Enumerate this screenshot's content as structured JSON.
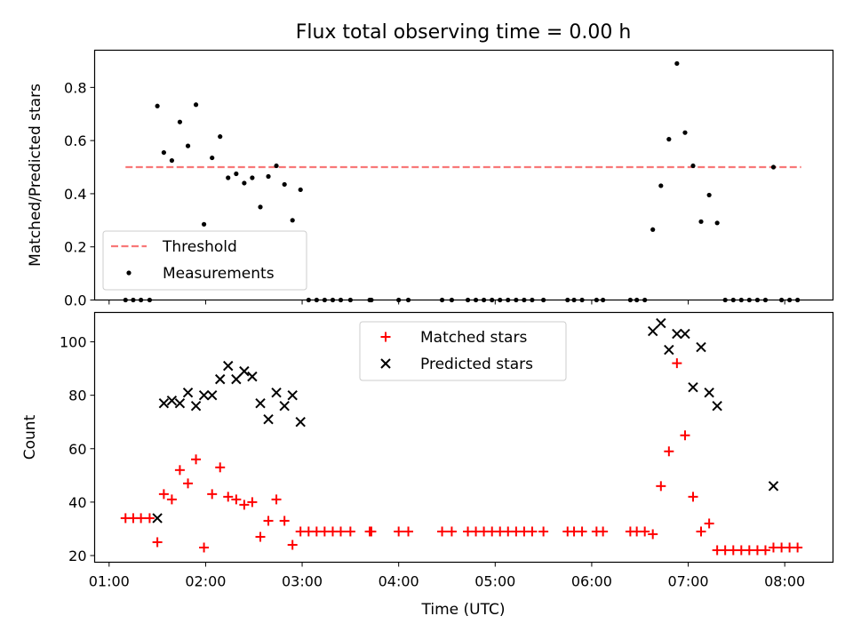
{
  "figure": {
    "title": "Flux total observing time = 0.00 h"
  },
  "chart_data": [
    {
      "type": "scatter",
      "panel": "top",
      "title": "Flux total observing time = 0.00 h",
      "xlabel": "",
      "ylabel": "Matched/Predicted stars",
      "xlim": [
        0.85,
        8.5
      ],
      "ylim": [
        0,
        0.94
      ],
      "yticks": [
        0.0,
        0.2,
        0.4,
        0.6,
        0.8
      ],
      "ytick_labels": [
        "0.0",
        "0.2",
        "0.4",
        "0.6",
        "0.8"
      ],
      "legend": {
        "position": "lower-left",
        "entries": [
          "Threshold",
          "Measurements"
        ]
      },
      "threshold": {
        "name": "Threshold",
        "y": 0.5,
        "x": [
          1.17,
          8.17
        ],
        "color": "#f87878",
        "style": "dashed"
      },
      "series": [
        {
          "name": "Measurements",
          "color": "#000000",
          "marker": "dot",
          "x": [
            1.17,
            1.25,
            1.33,
            1.42,
            1.5,
            1.567,
            1.65,
            1.733,
            1.817,
            1.9,
            1.983,
            2.067,
            2.15,
            2.233,
            2.317,
            2.4,
            2.483,
            2.567,
            2.65,
            2.733,
            2.817,
            2.9,
            2.983,
            3.067,
            3.15,
            3.233,
            3.317,
            3.4,
            3.5,
            3.7,
            3.717,
            4.0,
            4.1,
            4.45,
            4.55,
            4.717,
            4.8,
            4.883,
            4.967,
            5.05,
            5.133,
            5.217,
            5.3,
            5.383,
            5.5,
            5.75,
            5.817,
            5.9,
            6.05,
            6.117,
            6.4,
            6.467,
            6.55,
            6.633,
            6.717,
            6.8,
            6.883,
            6.967,
            7.05,
            7.133,
            7.217,
            7.3,
            7.383,
            7.467,
            7.55,
            7.633,
            7.717,
            7.8,
            7.883,
            7.967,
            8.05,
            8.133
          ],
          "y": [
            0,
            0,
            0,
            0,
            0.73,
            0.555,
            0.525,
            0.67,
            0.58,
            0.735,
            0.285,
            0.535,
            0.615,
            0.46,
            0.475,
            0.44,
            0.46,
            0.35,
            0.465,
            0.505,
            0.435,
            0.3,
            0.415,
            0,
            0,
            0,
            0,
            0,
            0,
            0,
            0,
            0,
            0,
            0,
            0,
            0,
            0,
            0,
            0,
            0,
            0,
            0,
            0,
            0,
            0,
            0,
            0,
            0,
            0,
            0,
            0,
            0,
            0,
            0.265,
            0.43,
            0.605,
            0.89,
            0.63,
            0.505,
            0.295,
            0.395,
            0.29,
            0,
            0,
            0,
            0,
            0,
            0,
            0.5,
            0,
            0,
            0
          ]
        }
      ]
    },
    {
      "type": "scatter",
      "panel": "bottom",
      "xlabel": "Time (UTC)",
      "ylabel": "Count",
      "xlim": [
        0.85,
        8.5
      ],
      "ylim": [
        17.5,
        111
      ],
      "xticks": [
        1,
        2,
        3,
        4,
        5,
        6,
        7,
        8
      ],
      "xtick_labels": [
        "01:00",
        "02:00",
        "03:00",
        "04:00",
        "05:00",
        "06:00",
        "07:00",
        "08:00"
      ],
      "yticks": [
        20,
        40,
        60,
        80,
        100
      ],
      "ytick_labels": [
        "20",
        "40",
        "60",
        "80",
        "100"
      ],
      "legend": {
        "position": "upper-center",
        "entries": [
          "Matched stars",
          "Predicted stars"
        ]
      },
      "series": [
        {
          "name": "Matched stars",
          "color": "#ff0000",
          "marker": "plus",
          "x": [
            1.17,
            1.25,
            1.33,
            1.42,
            1.5,
            1.567,
            1.65,
            1.733,
            1.817,
            1.9,
            1.983,
            2.067,
            2.15,
            2.233,
            2.317,
            2.4,
            2.483,
            2.567,
            2.65,
            2.733,
            2.817,
            2.9,
            2.983,
            3.067,
            3.15,
            3.233,
            3.317,
            3.4,
            3.5,
            3.7,
            3.717,
            4.0,
            4.1,
            4.45,
            4.55,
            4.717,
            4.8,
            4.883,
            4.967,
            5.05,
            5.133,
            5.217,
            5.3,
            5.383,
            5.5,
            5.75,
            5.817,
            5.9,
            6.05,
            6.117,
            6.4,
            6.467,
            6.55,
            6.633,
            6.717,
            6.8,
            6.883,
            6.967,
            7.05,
            7.133,
            7.217,
            7.3,
            7.383,
            7.467,
            7.55,
            7.633,
            7.717,
            7.8,
            7.883,
            7.967,
            8.05,
            8.133
          ],
          "y": [
            34,
            34,
            34,
            34,
            25,
            43,
            41,
            52,
            47,
            56,
            23,
            43,
            53,
            42,
            41,
            39,
            40,
            27,
            33,
            41,
            33,
            24,
            29,
            29,
            29,
            29,
            29,
            29,
            29,
            29,
            29,
            29,
            29,
            29,
            29,
            29,
            29,
            29,
            29,
            29,
            29,
            29,
            29,
            29,
            29,
            29,
            29,
            29,
            29,
            29,
            29,
            29,
            29,
            28,
            46,
            59,
            92,
            65,
            42,
            29,
            32,
            22,
            22,
            22,
            22,
            22,
            22,
            22,
            23,
            23,
            23,
            23
          ]
        },
        {
          "name": "Predicted stars",
          "color": "#000000",
          "marker": "x",
          "x": [
            1.5,
            1.567,
            1.65,
            1.733,
            1.817,
            1.9,
            1.983,
            2.067,
            2.15,
            2.233,
            2.317,
            2.4,
            2.483,
            2.567,
            2.65,
            2.733,
            2.817,
            2.9,
            2.983,
            6.633,
            6.717,
            6.8,
            6.883,
            6.967,
            7.05,
            7.133,
            7.217,
            7.3,
            7.883
          ],
          "y": [
            34,
            77,
            78,
            77,
            81,
            76,
            80,
            80,
            86,
            91,
            86,
            89,
            87,
            77,
            71,
            81,
            76,
            80,
            70,
            104,
            107,
            97,
            103,
            103,
            83,
            98,
            81,
            76,
            46
          ]
        }
      ]
    }
  ]
}
